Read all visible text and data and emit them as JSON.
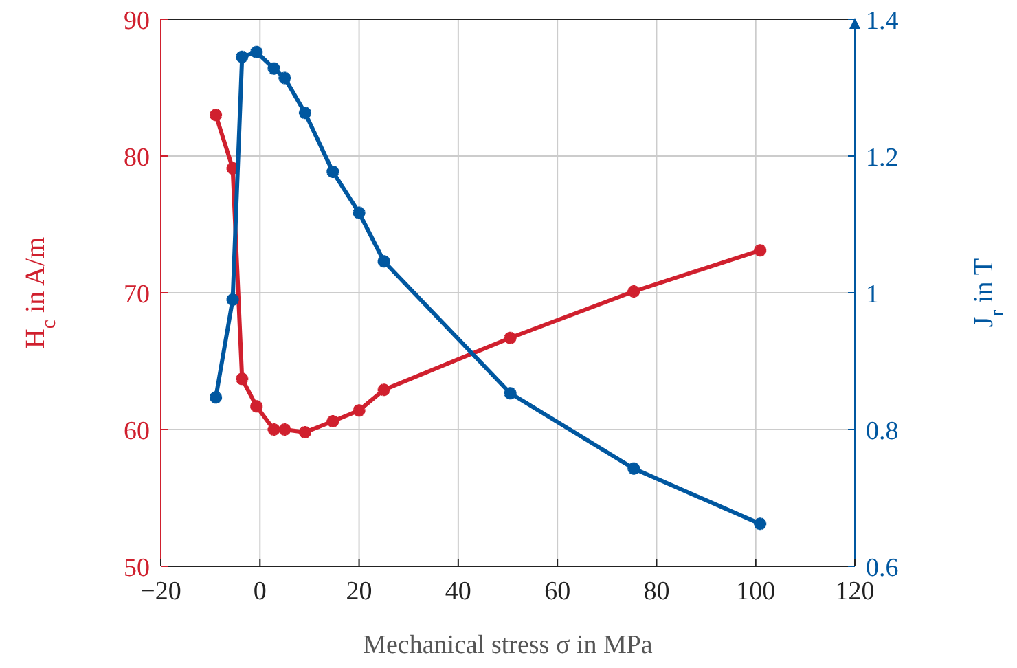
{
  "chart_data": {
    "type": "line",
    "xlabel": "Mechanical stress σ in MPa",
    "ylabel": "H$_{c}$ in A/m",
    "y2label": "J$_{r}$ in T",
    "x": [
      -8.9,
      -5.5,
      -3.6,
      -0.7,
      2.8,
      5.0,
      9.1,
      14.7,
      20.0,
      25.0,
      50.5,
      75.4,
      100.9
    ],
    "series": [
      {
        "color": "#d0202e",
        "values": [
          83.0,
          79.1,
          63.7,
          61.7,
          60.0,
          60.0,
          59.8,
          60.6,
          61.4,
          62.9,
          66.7,
          70.1,
          73.1
        ]
      },
      {
        "color": "#0057a0",
        "axis": "y2",
        "values": [
          0.847,
          0.99,
          1.345,
          1.352,
          1.328,
          1.314,
          1.263,
          1.177,
          1.117,
          1.046,
          0.853,
          0.743,
          0.662
        ]
      }
    ],
    "xlim": [
      -20,
      120
    ],
    "xticks": [
      {
        "value": -20,
        "label": "−20"
      },
      0,
      20,
      40,
      60,
      80,
      100,
      120
    ],
    "ylim": [
      50,
      90
    ],
    "yticks": [
      50,
      60,
      70,
      80,
      90
    ],
    "y2lim": [
      0.6,
      1.4
    ],
    "y2ticks": [
      0.6,
      0.8,
      1,
      1.2,
      1.4
    ],
    "grid": true,
    "marker": "cross",
    "line_style": "solid"
  }
}
